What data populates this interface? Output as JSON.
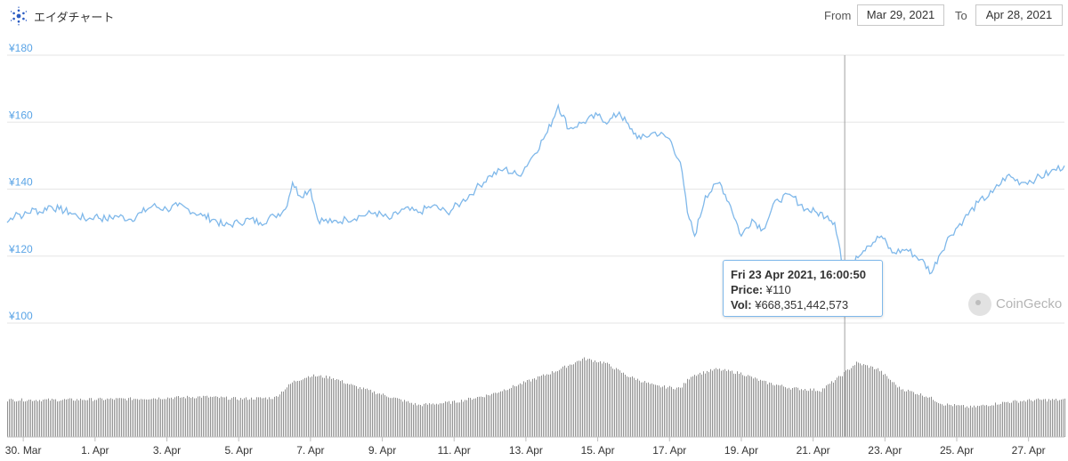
{
  "header": {
    "title": "エイダチャート",
    "from_label": "From",
    "from_date": "Mar 29, 2021",
    "to_label": "To",
    "to_date": "Apr 28, 2021"
  },
  "tooltip": {
    "date": "Fri 23 Apr 2021, 16:00:50",
    "price_label": "Price:",
    "price_value": "¥110",
    "vol_label": "Vol:",
    "vol_value": "¥668,351,442,573"
  },
  "watermark": {
    "text": "CoinGecko"
  },
  "colors": {
    "line": "#7fb8ea",
    "axis_labels": "#5aa4e6",
    "volume": "#909090",
    "grid": "#e6e6e6"
  },
  "chart_data": {
    "type": "line",
    "title": "",
    "y_ticks": [
      "¥180",
      "¥160",
      "¥140",
      "¥120",
      "¥100"
    ],
    "ylim": [
      100,
      180
    ],
    "x_ticks": [
      "30. Mar",
      "1. Apr",
      "3. Apr",
      "5. Apr",
      "7. Apr",
      "9. Apr",
      "11. Apr",
      "13. Apr",
      "15. Apr",
      "17. Apr",
      "19. Apr",
      "21. Apr",
      "23. Apr",
      "25. Apr",
      "27. Apr"
    ],
    "x_tick_days": [
      1,
      3,
      5,
      7,
      9,
      11,
      13,
      15,
      17,
      19,
      21,
      23,
      25,
      27,
      29
    ],
    "xlim_days": [
      0.55,
      30.0
    ],
    "price_points": [
      [
        0.55,
        130
      ],
      [
        0.8,
        133
      ],
      [
        1.0,
        132
      ],
      [
        1.3,
        134
      ],
      [
        1.5,
        133
      ],
      [
        1.7,
        135
      ],
      [
        2.0,
        134
      ],
      [
        2.3,
        133
      ],
      [
        2.5,
        132
      ],
      [
        2.8,
        131
      ],
      [
        3.0,
        132
      ],
      [
        3.3,
        131
      ],
      [
        3.6,
        132
      ],
      [
        4.0,
        131
      ],
      [
        4.3,
        133
      ],
      [
        4.6,
        135
      ],
      [
        5.0,
        134
      ],
      [
        5.3,
        135
      ],
      [
        5.6,
        134
      ],
      [
        6.0,
        132
      ],
      [
        6.3,
        131
      ],
      [
        6.6,
        129
      ],
      [
        7.0,
        130
      ],
      [
        7.3,
        131
      ],
      [
        7.6,
        130
      ],
      [
        8.0,
        132
      ],
      [
        8.3,
        134
      ],
      [
        8.5,
        142
      ],
      [
        8.7,
        138
      ],
      [
        9.0,
        140
      ],
      [
        9.2,
        131
      ],
      [
        9.6,
        130
      ],
      [
        10.0,
        131
      ],
      [
        10.4,
        132
      ],
      [
        10.8,
        133
      ],
      [
        11.2,
        131
      ],
      [
        11.6,
        134
      ],
      [
        12.0,
        133
      ],
      [
        12.4,
        135
      ],
      [
        12.8,
        133
      ],
      [
        13.2,
        136
      ],
      [
        13.6,
        140
      ],
      [
        14.0,
        144
      ],
      [
        14.4,
        146
      ],
      [
        14.8,
        144
      ],
      [
        15.2,
        150
      ],
      [
        15.6,
        157
      ],
      [
        15.9,
        165
      ],
      [
        16.2,
        158
      ],
      [
        16.6,
        160
      ],
      [
        17.0,
        162
      ],
      [
        17.3,
        160
      ],
      [
        17.6,
        163
      ],
      [
        17.9,
        158
      ],
      [
        18.2,
        155
      ],
      [
        18.6,
        157
      ],
      [
        19.0,
        155
      ],
      [
        19.3,
        148
      ],
      [
        19.5,
        133
      ],
      [
        19.7,
        126
      ],
      [
        20.0,
        138
      ],
      [
        20.4,
        142
      ],
      [
        20.7,
        135
      ],
      [
        21.0,
        126
      ],
      [
        21.3,
        131
      ],
      [
        21.6,
        128
      ],
      [
        22.0,
        137
      ],
      [
        22.4,
        138
      ],
      [
        22.8,
        134
      ],
      [
        23.1,
        133
      ],
      [
        23.4,
        132
      ],
      [
        23.6,
        130
      ],
      [
        23.75,
        122
      ],
      [
        23.88,
        110
      ],
      [
        24.0,
        112
      ],
      [
        24.2,
        120
      ],
      [
        24.5,
        123
      ],
      [
        24.9,
        126
      ],
      [
        25.2,
        121
      ],
      [
        25.6,
        122
      ],
      [
        26.0,
        119
      ],
      [
        26.3,
        115
      ],
      [
        26.5,
        120
      ],
      [
        26.8,
        126
      ],
      [
        27.2,
        131
      ],
      [
        27.6,
        136
      ],
      [
        28.0,
        139
      ],
      [
        28.4,
        144
      ],
      [
        28.8,
        142
      ],
      [
        29.2,
        143
      ],
      [
        29.6,
        145
      ],
      [
        30.0,
        147
      ]
    ],
    "volume_envelope": [
      [
        0.55,
        0.35
      ],
      [
        2.0,
        0.35
      ],
      [
        4.0,
        0.36
      ],
      [
        6.0,
        0.38
      ],
      [
        7.0,
        0.36
      ],
      [
        8.0,
        0.37
      ],
      [
        8.5,
        0.52
      ],
      [
        9.0,
        0.58
      ],
      [
        9.6,
        0.56
      ],
      [
        10.2,
        0.48
      ],
      [
        11.0,
        0.4
      ],
      [
        12.0,
        0.3
      ],
      [
        13.0,
        0.33
      ],
      [
        14.0,
        0.4
      ],
      [
        15.0,
        0.52
      ],
      [
        15.8,
        0.62
      ],
      [
        16.6,
        0.74
      ],
      [
        17.2,
        0.7
      ],
      [
        17.8,
        0.58
      ],
      [
        18.6,
        0.48
      ],
      [
        19.3,
        0.46
      ],
      [
        19.6,
        0.58
      ],
      [
        20.3,
        0.64
      ],
      [
        21.0,
        0.6
      ],
      [
        21.6,
        0.52
      ],
      [
        22.4,
        0.46
      ],
      [
        23.2,
        0.44
      ],
      [
        23.7,
        0.56
      ],
      [
        24.2,
        0.7
      ],
      [
        24.8,
        0.64
      ],
      [
        25.4,
        0.46
      ],
      [
        26.2,
        0.38
      ],
      [
        26.6,
        0.31
      ],
      [
        27.4,
        0.28
      ],
      [
        28.4,
        0.33
      ],
      [
        29.2,
        0.35
      ],
      [
        30.0,
        0.35
      ]
    ],
    "highlight": {
      "day": 23.88,
      "price": 110
    }
  }
}
